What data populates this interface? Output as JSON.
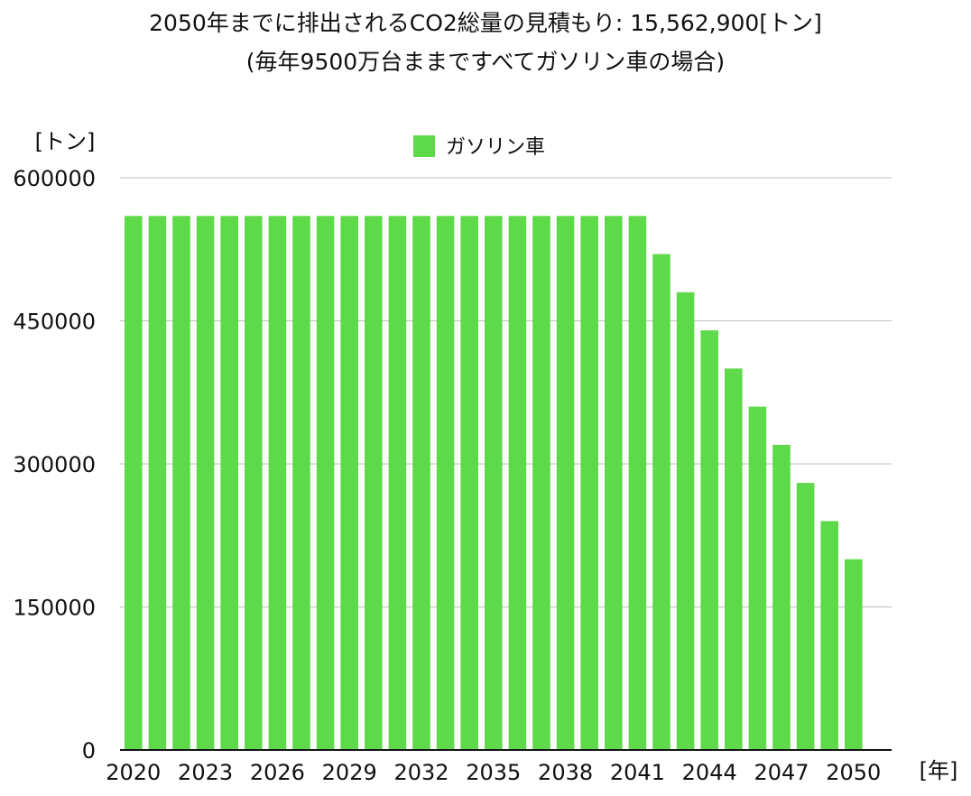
{
  "chart_data": {
    "type": "bar",
    "title": "2050年までに排出されるCO2総量の見積もり: 15,562,900[トン]",
    "subtitle": "(毎年9500万台ままですべてガソリン車の場合)",
    "ylabel": "[トン]",
    "xlabel": "[年]",
    "ylim": [
      0,
      600000
    ],
    "yticks": [
      0,
      150000,
      300000,
      450000,
      600000
    ],
    "grid": true,
    "legend_position": "top-center",
    "categories": [
      2020,
      2021,
      2022,
      2023,
      2024,
      2025,
      2026,
      2027,
      2028,
      2029,
      2030,
      2031,
      2032,
      2033,
      2034,
      2035,
      2036,
      2037,
      2038,
      2039,
      2040,
      2041,
      2042,
      2043,
      2044,
      2045,
      2046,
      2047,
      2048,
      2049,
      2050
    ],
    "xtick_labels": [
      "2020",
      "2023",
      "2026",
      "2029",
      "2032",
      "2035",
      "2038",
      "2041",
      "2044",
      "2047",
      "2050"
    ],
    "xtick_years": [
      2020,
      2023,
      2026,
      2029,
      2032,
      2035,
      2038,
      2041,
      2044,
      2047,
      2050
    ],
    "series": [
      {
        "name": "ガソリン車",
        "color": "#5ed94a",
        "values": [
          560000,
          560000,
          560000,
          560000,
          560000,
          560000,
          560000,
          560000,
          560000,
          560000,
          560000,
          560000,
          560000,
          560000,
          560000,
          560000,
          560000,
          560000,
          560000,
          560000,
          560000,
          560000,
          520000,
          480000,
          440000,
          400000,
          360000,
          320000,
          280000,
          240000,
          200000
        ]
      }
    ]
  }
}
